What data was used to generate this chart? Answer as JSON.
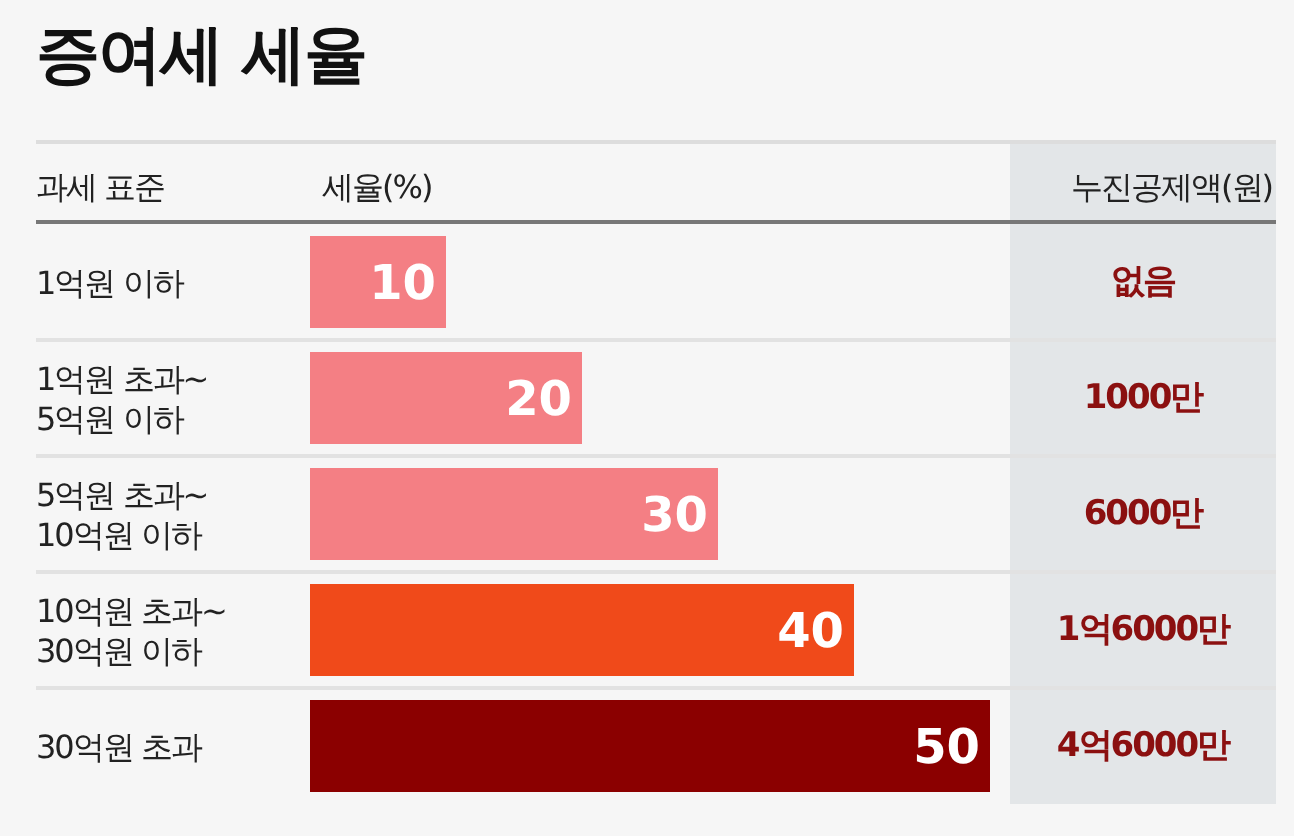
{
  "chart_data": {
    "type": "bar",
    "orientation": "horizontal",
    "title": "증여세 세율",
    "ylabel": "과세 표준",
    "xlabel": "세율(%)",
    "y2label": "누진공제액(원)",
    "categories": [
      "1억원 이하",
      "1억원 초과~\n5억원 이하",
      "5억원 초과~\n10억원 이하",
      "10억원 초과~\n30억원 이하",
      "30억원 초과"
    ],
    "values": [
      10,
      20,
      30,
      40,
      50
    ],
    "colors": [
      "#f47f84",
      "#f47f84",
      "#f47f84",
      "#f04a1a",
      "#8b0000"
    ],
    "xlim": [
      0,
      50
    ],
    "tick_labels": "y",
    "data_labels": true,
    "annotations": [
      "없음",
      "1000만",
      "6000만",
      "1억6000만",
      "4억6000만"
    ]
  }
}
